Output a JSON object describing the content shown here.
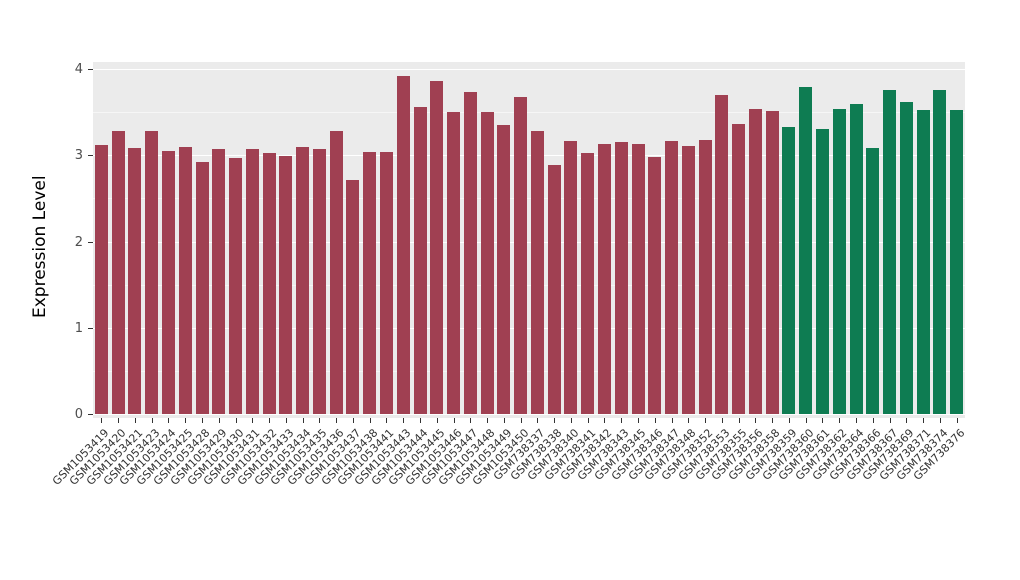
{
  "chart_data": {
    "type": "bar",
    "title": "",
    "xlabel": "",
    "ylabel": "Expression Level",
    "ylim": [
      0,
      4
    ],
    "yticks": [
      0,
      1,
      2,
      3,
      4
    ],
    "grid": "white major and minor horizontal gridlines on gray panel",
    "legend": "none",
    "panel_background": "#EBEBEB",
    "group_colors": [
      "#A04052",
      "#0E7C52"
    ],
    "group_boundary": 41,
    "categories": [
      "GSM1053419",
      "GSM1053420",
      "GSM1053421",
      "GSM1053423",
      "GSM1053424",
      "GSM1053425",
      "GSM1053428",
      "GSM1053429",
      "GSM1053430",
      "GSM1053431",
      "GSM1053432",
      "GSM1053433",
      "GSM1053434",
      "GSM1053435",
      "GSM1053436",
      "GSM1053437",
      "GSM1053438",
      "GSM1053441",
      "GSM1053443",
      "GSM1053444",
      "GSM1053445",
      "GSM1053446",
      "GSM1053447",
      "GSM1053448",
      "GSM1053449",
      "GSM1053450",
      "GSM738337",
      "GSM738338",
      "GSM738340",
      "GSM738341",
      "GSM738342",
      "GSM738343",
      "GSM738345",
      "GSM738346",
      "GSM738347",
      "GSM738348",
      "GSM738352",
      "GSM738353",
      "GSM738355",
      "GSM738356",
      "GSM738358",
      "GSM738359",
      "GSM738360",
      "GSM738361",
      "GSM738362",
      "GSM738364",
      "GSM738366",
      "GSM738367",
      "GSM738369",
      "GSM738371",
      "GSM738374",
      "GSM738376"
    ],
    "values": [
      3.12,
      3.28,
      3.08,
      3.28,
      3.05,
      3.1,
      2.92,
      3.07,
      2.97,
      3.07,
      3.03,
      2.99,
      3.1,
      3.07,
      3.28,
      2.71,
      3.04,
      3.04,
      3.92,
      3.56,
      3.86,
      3.5,
      3.73,
      3.5,
      3.35,
      3.67,
      3.28,
      2.89,
      3.17,
      3.03,
      3.13,
      3.15,
      3.13,
      2.98,
      3.17,
      3.11,
      3.18,
      3.7,
      3.36,
      3.54,
      3.51,
      3.33,
      3.79,
      3.31,
      3.54,
      3.59,
      3.08,
      3.76,
      3.62,
      3.53,
      3.76,
      3.53
    ]
  }
}
